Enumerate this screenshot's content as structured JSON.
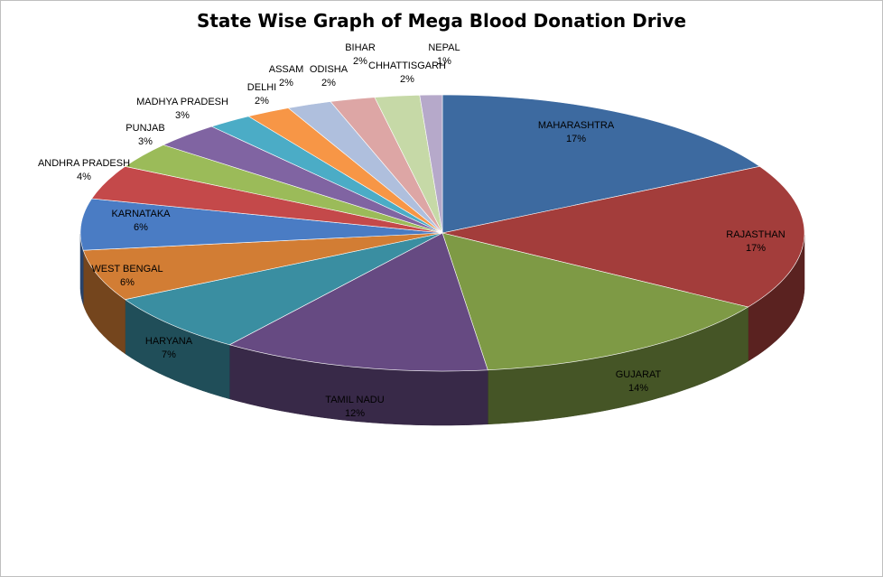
{
  "chart_data": {
    "type": "pie",
    "title": "State Wise Graph of Mega Blood Donation Drive",
    "slices": [
      {
        "name": "MAHARASHTRA",
        "label": "17%",
        "value": 17,
        "color": "#3D6AA0"
      },
      {
        "name": "RAJASTHAN",
        "label": "17%",
        "value": 17,
        "color": "#A33D3B"
      },
      {
        "name": "GUJARAT",
        "label": "14%",
        "value": 14,
        "color": "#7E9A45"
      },
      {
        "name": "TAMIL NADU",
        "label": "12%",
        "value": 12,
        "color": "#664A82"
      },
      {
        "name": "HARYANA",
        "label": "7%",
        "value": 7,
        "color": "#3A8EA1"
      },
      {
        "name": "WEST BENGAL",
        "label": "6%",
        "value": 6,
        "color": "#D27D34"
      },
      {
        "name": "KARNATAKA",
        "label": "6%",
        "value": 6,
        "color": "#4A7CC4"
      },
      {
        "name": "ANDHRA  PRADESH",
        "label": "4%",
        "value": 4,
        "color": "#C4494A"
      },
      {
        "name": "PUNJAB",
        "label": "3%",
        "value": 3,
        "color": "#9BBB59"
      },
      {
        "name": "MADHYA  PRADESH",
        "label": "3%",
        "value": 3,
        "color": "#8064A2"
      },
      {
        "name": "DELHI",
        "label": "2%",
        "value": 2,
        "color": "#4BACC6"
      },
      {
        "name": "ASSAM",
        "label": "2%",
        "value": 2,
        "color": "#F79646"
      },
      {
        "name": "ODISHA",
        "label": "2%",
        "value": 2,
        "color": "#AFBFDD"
      },
      {
        "name": "BIHAR",
        "label": "2%",
        "value": 2,
        "color": "#DDA6A5"
      },
      {
        "name": "CHHATTISGARH",
        "label": "2%",
        "value": 2,
        "color": "#C6D9A7"
      },
      {
        "name": "NEPAL",
        "label": "1%",
        "value": 1,
        "color": "#B6A9CA"
      }
    ]
  }
}
